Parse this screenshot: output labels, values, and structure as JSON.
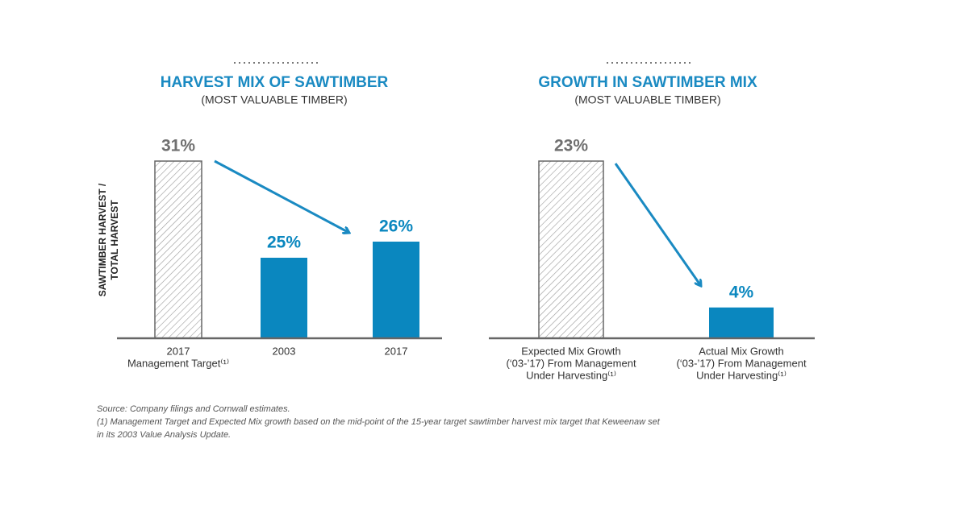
{
  "chart_data": [
    {
      "type": "bar",
      "title": "HARVEST MIX OF SAWTIMBER",
      "subtitle": "(MOST VALUABLE TIMBER)",
      "y_label": [
        "SAWTIMBER HARVEST /",
        "TOTAL HARVEST"
      ],
      "categories": [
        [
          "2017",
          "Management Target⁽¹⁾"
        ],
        [
          "2003"
        ],
        [
          "2017"
        ]
      ],
      "values": [
        31,
        25,
        26
      ],
      "value_labels": [
        "31%",
        "25%",
        "26%"
      ],
      "colors": [
        "#ffffff",
        "#0a87bf",
        "#0a87bf"
      ],
      "hatch": [
        true,
        false,
        false
      ],
      "ylim": [
        20,
        31
      ]
    },
    {
      "type": "bar",
      "title": "GROWTH IN SAWTIMBER MIX",
      "subtitle": "(MOST VALUABLE TIMBER)",
      "categories": [
        [
          "Expected Mix Growth",
          "(‘03-’17) From Management",
          "Under Harvesting⁽¹⁾"
        ],
        [
          "Actual Mix Growth",
          "(‘03-’17) From Management",
          "Under Harvesting⁽¹⁾"
        ]
      ],
      "values": [
        23,
        4
      ],
      "value_labels": [
        "23%",
        "4%"
      ],
      "colors": [
        "#ffffff",
        "#0a87bf"
      ],
      "hatch": [
        true,
        false
      ],
      "ylim": [
        0,
        23
      ]
    }
  ],
  "notes": [
    "Source: Company filings and Cornwall estimates.",
    "(1) Management Target and Expected Mix growth based on the mid-point of the 15-year target sawtimber harvest mix target that Keweenaw set",
    "in its 2003 Value Analysis Update."
  ]
}
